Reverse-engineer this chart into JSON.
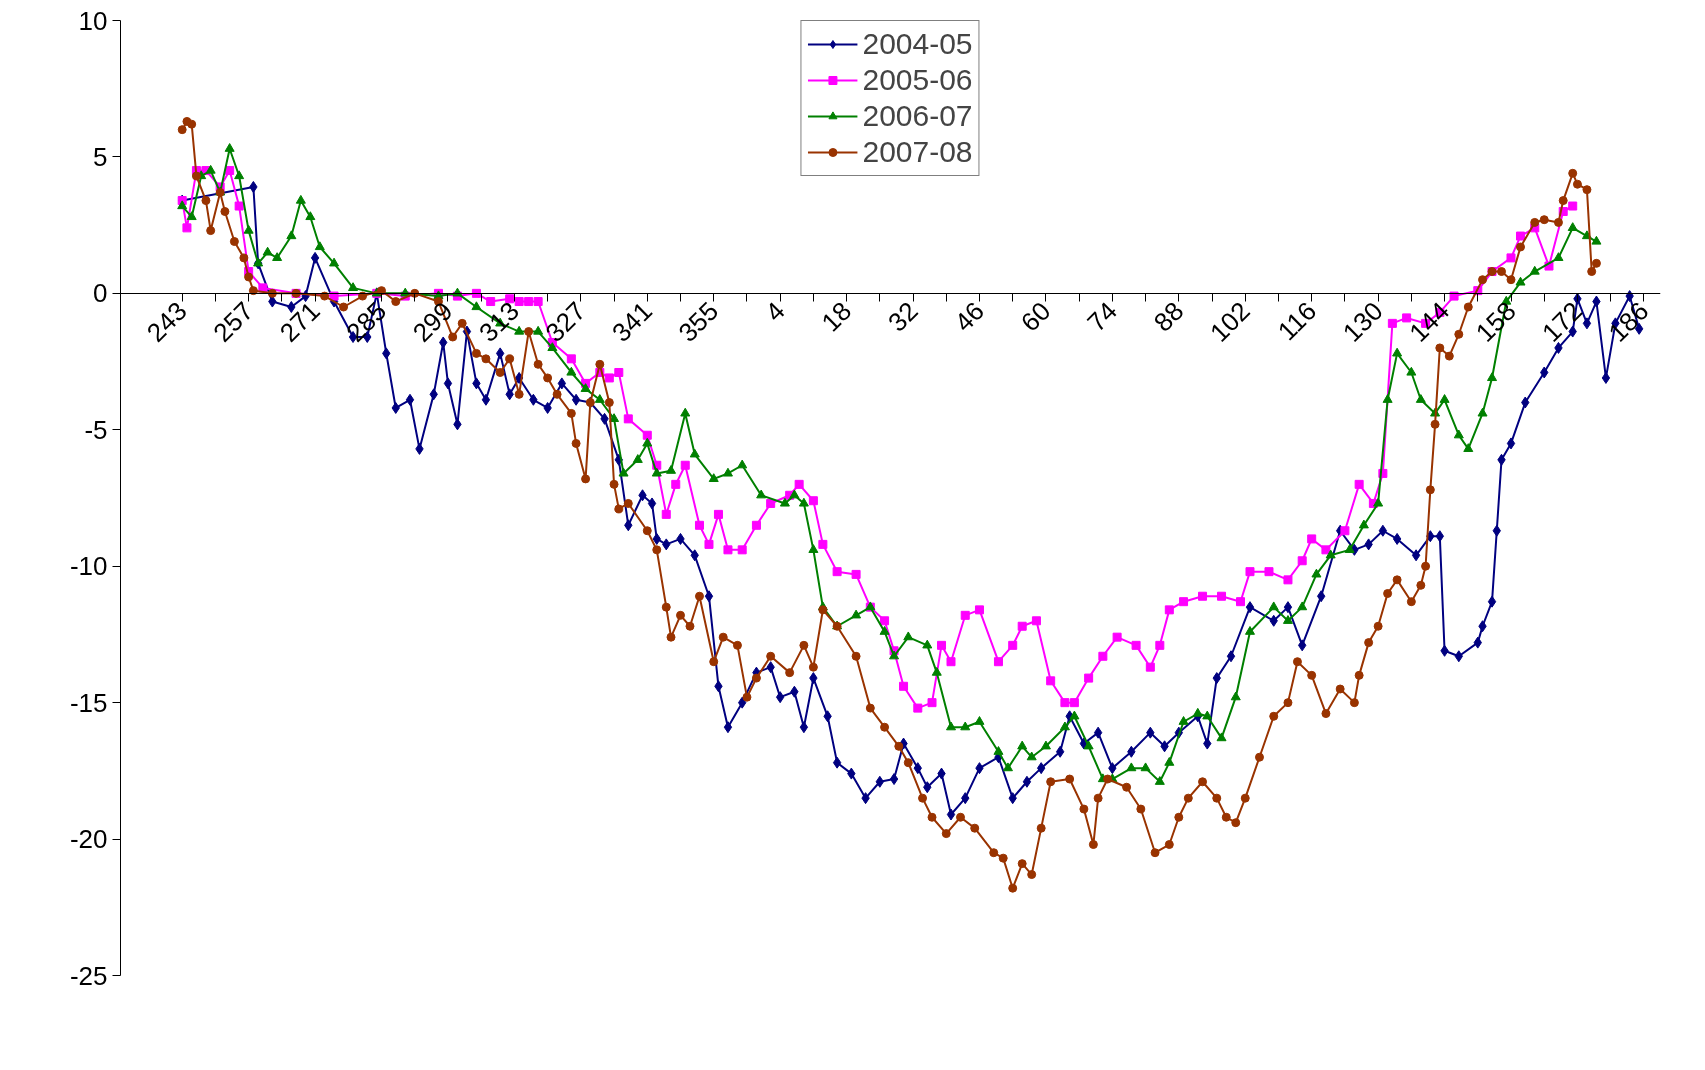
{
  "chart_data": {
    "type": "line",
    "ylim": [
      -25,
      10
    ],
    "categories": [
      "243",
      null,
      null,
      null,
      null,
      null,
      null,
      null,
      null,
      null,
      null,
      null,
      null,
      null,
      "257",
      null,
      null,
      null,
      null,
      null,
      null,
      null,
      null,
      null,
      null,
      null,
      null,
      null,
      "271",
      null,
      null,
      null,
      null,
      null,
      null,
      null,
      null,
      null,
      null,
      null,
      null,
      null,
      "285",
      null,
      null,
      null,
      null,
      null,
      null,
      null,
      null,
      null,
      null,
      null,
      null,
      null,
      "299",
      null,
      null,
      null,
      null,
      null,
      null,
      null,
      null,
      null,
      null,
      null,
      null,
      null,
      "313",
      null,
      null,
      null,
      null,
      null,
      null,
      null,
      null,
      null,
      null,
      null,
      null,
      null,
      "327",
      null,
      null,
      null,
      null,
      null,
      null,
      null,
      null,
      null,
      null,
      null,
      null,
      null,
      "341",
      null,
      null,
      null,
      null,
      null,
      null,
      null,
      null,
      null,
      null,
      null,
      null,
      null,
      "355",
      null,
      null,
      null,
      null,
      null,
      null,
      null,
      null,
      null,
      null,
      null,
      null,
      null,
      "4",
      null,
      null,
      null,
      null,
      null,
      null,
      null,
      null,
      null,
      null,
      null,
      null,
      null,
      "18",
      null,
      null,
      null,
      null,
      null,
      null,
      null,
      null,
      null,
      null,
      null,
      null,
      null,
      "32",
      null,
      null,
      null,
      null,
      null,
      null,
      null,
      null,
      null,
      null,
      null,
      null,
      null,
      "46",
      null,
      null,
      null,
      null,
      null,
      null,
      null,
      null,
      null,
      null,
      null,
      null,
      null,
      "60",
      null,
      null,
      null,
      null,
      null,
      null,
      null,
      null,
      null,
      null,
      null,
      null,
      null,
      "74",
      null,
      null,
      null,
      null,
      null,
      null,
      null,
      null,
      null,
      null,
      null,
      null,
      null,
      "88",
      null,
      null,
      null,
      null,
      null,
      null,
      null,
      null,
      null,
      null,
      null,
      null,
      null,
      "102",
      null,
      null,
      null,
      null,
      null,
      null,
      null,
      null,
      null,
      null,
      null,
      null,
      null,
      "116",
      null,
      null,
      null,
      null,
      null,
      null,
      null,
      null,
      null,
      null,
      null,
      null,
      null,
      "130",
      null,
      null,
      null,
      null,
      null,
      null,
      null,
      null,
      null,
      null,
      null,
      null,
      null,
      "144",
      null,
      null,
      null,
      null,
      null,
      null,
      null,
      null,
      null,
      null,
      null,
      null,
      null,
      "158",
      null,
      null,
      null,
      null,
      null,
      null,
      null,
      null,
      null,
      null,
      null,
      null,
      null,
      "172",
      null,
      null,
      null,
      null,
      null,
      null,
      null,
      null,
      null,
      null,
      null,
      null,
      null,
      "186",
      null,
      null,
      null
    ],
    "yticks": [
      -25,
      -20,
      -15,
      -10,
      -5,
      0,
      5,
      10
    ],
    "grid": false,
    "legend": "top",
    "line_style": "solid",
    "series": [
      {
        "name": "2004-05",
        "color": "#000080",
        "marker": "diamond",
        "values": [
          3.4,
          null,
          null,
          null,
          null,
          null,
          null,
          null,
          null,
          null,
          null,
          null,
          null,
          null,
          null,
          3.9,
          1.1,
          null,
          null,
          -0.3,
          null,
          null,
          null,
          -0.5,
          null,
          null,
          -0.1,
          null,
          1.3,
          null,
          null,
          null,
          -0.3,
          null,
          null,
          null,
          -1.6,
          null,
          null,
          -1.6,
          null,
          0.0,
          null,
          -2.2,
          null,
          -4.2,
          null,
          null,
          -3.9,
          null,
          -5.7,
          null,
          null,
          -3.7,
          null,
          -1.8,
          -3.3,
          null,
          -4.8,
          null,
          -1.4,
          null,
          -3.3,
          null,
          -3.9,
          null,
          null,
          -2.2,
          null,
          -3.7,
          null,
          -3.1,
          null,
          null,
          -3.9,
          null,
          null,
          -4.2,
          null,
          null,
          -3.3,
          null,
          null,
          -3.9,
          null,
          null,
          -4.0,
          null,
          null,
          -4.6,
          null,
          null,
          -6.1,
          null,
          -8.5,
          null,
          null,
          -7.4,
          null,
          -7.7,
          -9.0,
          null,
          -9.2,
          null,
          null,
          -9.0,
          null,
          null,
          -9.6,
          null,
          null,
          -11.1,
          null,
          -14.4,
          null,
          -15.9,
          null,
          null,
          -15.0,
          null,
          null,
          -13.9,
          null,
          null,
          -13.7,
          null,
          -14.8,
          null,
          null,
          -14.6,
          null,
          -15.9,
          null,
          -14.1,
          null,
          null,
          -15.5,
          null,
          -17.2,
          null,
          null,
          -17.6,
          null,
          null,
          -18.5,
          null,
          null,
          -17.9,
          null,
          null,
          -17.8,
          null,
          -16.5,
          null,
          null,
          -17.4,
          null,
          -18.1,
          null,
          null,
          -17.6,
          null,
          -19.1,
          null,
          null,
          -18.5,
          null,
          null,
          -17.4,
          null,
          null,
          null,
          -17.0,
          null,
          null,
          -18.5,
          null,
          null,
          -17.9,
          null,
          null,
          -17.4,
          null,
          null,
          null,
          -16.8,
          null,
          -15.5,
          null,
          null,
          -16.5,
          null,
          null,
          -16.1,
          null,
          null,
          -17.4,
          null,
          null,
          null,
          -16.8,
          null,
          null,
          null,
          -16.1,
          null,
          null,
          -16.6,
          null,
          null,
          -16.1,
          null,
          null,
          null,
          -15.5,
          null,
          -16.5,
          null,
          -14.1,
          null,
          null,
          -13.3,
          null,
          null,
          null,
          -11.5,
          null,
          null,
          null,
          null,
          -12.0,
          null,
          null,
          -11.5,
          null,
          null,
          -12.9,
          null,
          null,
          null,
          -11.1,
          null,
          null,
          null,
          -8.7,
          null,
          null,
          -9.4,
          null,
          null,
          -9.2,
          null,
          null,
          -8.7,
          null,
          null,
          -9.0,
          null,
          null,
          null,
          -9.6,
          null,
          null,
          -8.9,
          null,
          -8.9,
          -13.1,
          null,
          null,
          -13.3,
          null,
          null,
          null,
          -12.8,
          -12.2,
          null,
          -11.3,
          -8.7,
          -6.1,
          null,
          -5.5,
          null,
          null,
          -4.0,
          null,
          null,
          null,
          -2.9,
          null,
          null,
          -2.0,
          null,
          null,
          -1.4,
          -0.2,
          null,
          -1.1,
          null,
          -0.3,
          null,
          -3.1,
          null,
          -1.1,
          null,
          null,
          -0.1,
          null,
          -1.3,
          null,
          null,
          null,
          null
        ]
      },
      {
        "name": "2005-06",
        "color": "#ff00ff",
        "marker": "square",
        "values": [
          3.4,
          2.4,
          null,
          4.5,
          null,
          4.5,
          null,
          null,
          3.9,
          null,
          4.5,
          null,
          3.2,
          null,
          0.8,
          null,
          null,
          0.2,
          null,
          null,
          null,
          null,
          null,
          null,
          0.0,
          null,
          null,
          null,
          null,
          null,
          null,
          null,
          -0.1,
          null,
          null,
          null,
          null,
          null,
          null,
          null,
          null,
          0.0,
          null,
          null,
          null,
          null,
          null,
          -0.1,
          null,
          null,
          null,
          null,
          null,
          null,
          0.0,
          null,
          null,
          null,
          -0.1,
          null,
          null,
          null,
          0.0,
          null,
          null,
          -0.3,
          null,
          null,
          null,
          -0.2,
          null,
          -0.3,
          null,
          -0.3,
          null,
          -0.3,
          null,
          null,
          -1.8,
          null,
          null,
          null,
          -2.4,
          null,
          null,
          -3.3,
          null,
          null,
          -2.9,
          null,
          -3.1,
          null,
          -2.9,
          null,
          -4.6,
          null,
          null,
          null,
          -5.2,
          null,
          -6.3,
          null,
          -8.1,
          null,
          -7.0,
          null,
          -6.3,
          null,
          null,
          -8.5,
          null,
          -9.2,
          null,
          -8.1,
          null,
          -9.4,
          null,
          null,
          -9.4,
          null,
          null,
          -8.5,
          null,
          null,
          -7.7,
          null,
          null,
          null,
          -7.4,
          null,
          -7.0,
          null,
          null,
          -7.6,
          null,
          -9.2,
          null,
          null,
          -10.2,
          null,
          null,
          null,
          -10.3,
          null,
          null,
          -11.5,
          null,
          null,
          -12.0,
          null,
          -13.1,
          null,
          -14.4,
          null,
          null,
          -15.2,
          null,
          null,
          -15.0,
          null,
          -12.9,
          null,
          -13.5,
          null,
          null,
          -11.8,
          null,
          null,
          -11.6,
          null,
          null,
          null,
          -13.5,
          null,
          null,
          -12.9,
          null,
          -12.2,
          null,
          null,
          -12.0,
          null,
          null,
          -14.2,
          null,
          null,
          -15.0,
          null,
          -15.0,
          null,
          null,
          -14.1,
          null,
          null,
          -13.3,
          null,
          null,
          -12.6,
          null,
          null,
          null,
          -12.9,
          null,
          null,
          -13.7,
          null,
          -12.9,
          null,
          -11.6,
          null,
          null,
          -11.3,
          null,
          null,
          null,
          -11.1,
          null,
          null,
          null,
          -11.1,
          null,
          null,
          null,
          -11.3,
          null,
          -10.2,
          null,
          null,
          null,
          -10.2,
          null,
          null,
          null,
          -10.5,
          null,
          null,
          -9.8,
          null,
          -9.0,
          null,
          null,
          -9.4,
          null,
          null,
          null,
          -8.7,
          null,
          null,
          -7.0,
          null,
          null,
          -7.7,
          null,
          -6.6,
          null,
          -1.1,
          null,
          null,
          -0.9,
          null,
          null,
          null,
          -1.1,
          null,
          null,
          -0.7,
          null,
          null,
          -0.1,
          null,
          null,
          null,
          null,
          0.1,
          null,
          null,
          0.8,
          null,
          null,
          null,
          1.3,
          null,
          2.1,
          null,
          null,
          2.4,
          null,
          null,
          1.0,
          null,
          null,
          3.0,
          null,
          3.2,
          null,
          null,
          null,
          null,
          null,
          null,
          null,
          null,
          null,
          null,
          null,
          null,
          null,
          null,
          null,
          null,
          null,
          null
        ]
      },
      {
        "name": "2006-07",
        "color": "#008000",
        "marker": "triangle",
        "values": [
          3.2,
          null,
          2.8,
          null,
          4.3,
          null,
          4.5,
          null,
          3.7,
          null,
          5.3,
          null,
          4.3,
          null,
          2.3,
          null,
          1.1,
          null,
          1.5,
          null,
          1.3,
          null,
          null,
          2.1,
          null,
          3.4,
          null,
          2.8,
          null,
          1.7,
          null,
          null,
          1.1,
          null,
          null,
          null,
          0.2,
          null,
          null,
          null,
          null,
          0.0,
          null,
          null,
          null,
          null,
          null,
          0.0,
          null,
          null,
          null,
          null,
          null,
          null,
          -0.1,
          null,
          null,
          null,
          0.0,
          null,
          null,
          null,
          -0.5,
          null,
          null,
          null,
          null,
          -1.1,
          null,
          null,
          null,
          -1.4,
          null,
          null,
          null,
          -1.4,
          null,
          null,
          -2.0,
          null,
          null,
          null,
          -2.9,
          null,
          null,
          -3.5,
          null,
          null,
          -3.9,
          null,
          null,
          -4.6,
          null,
          -6.6,
          null,
          null,
          -6.1,
          null,
          -5.5,
          null,
          -6.6,
          null,
          null,
          -6.5,
          null,
          null,
          -4.4,
          null,
          -5.9,
          null,
          null,
          null,
          -6.8,
          null,
          null,
          -6.6,
          null,
          null,
          -6.3,
          null,
          null,
          null,
          -7.4,
          null,
          null,
          null,
          null,
          -7.7,
          null,
          -7.4,
          null,
          -7.7,
          null,
          -9.4,
          null,
          -11.5,
          null,
          null,
          -12.2,
          null,
          null,
          null,
          -11.8,
          null,
          null,
          -11.5,
          null,
          null,
          -12.4,
          null,
          -13.3,
          null,
          null,
          -12.6,
          null,
          null,
          null,
          -12.9,
          null,
          -13.9,
          null,
          null,
          -15.9,
          null,
          null,
          -15.9,
          null,
          null,
          -15.7,
          null,
          null,
          null,
          -16.8,
          null,
          -17.4,
          null,
          null,
          -16.6,
          null,
          -17.0,
          null,
          null,
          -16.6,
          null,
          null,
          null,
          -15.9,
          null,
          -15.5,
          null,
          null,
          -16.6,
          null,
          null,
          -17.8,
          null,
          -17.8,
          null,
          null,
          null,
          -17.4,
          null,
          null,
          -17.4,
          null,
          null,
          -17.9,
          null,
          -17.2,
          null,
          null,
          -15.7,
          null,
          null,
          -15.4,
          null,
          -15.5,
          null,
          null,
          -16.3,
          null,
          null,
          -14.8,
          null,
          null,
          -12.4,
          null,
          null,
          null,
          null,
          -11.5,
          null,
          null,
          -12.0,
          null,
          null,
          -11.5,
          null,
          null,
          -10.3,
          null,
          null,
          -9.6,
          null,
          null,
          null,
          -9.4,
          null,
          null,
          -8.5,
          null,
          null,
          -7.7,
          null,
          -3.9,
          null,
          -2.2,
          null,
          null,
          -2.9,
          null,
          -3.9,
          null,
          null,
          -4.4,
          null,
          -3.9,
          null,
          null,
          -5.2,
          null,
          -5.7,
          null,
          null,
          -4.4,
          null,
          -3.1,
          null,
          null,
          -0.3,
          null,
          null,
          0.4,
          null,
          null,
          0.8,
          null,
          null,
          null,
          null,
          1.3,
          null,
          null,
          2.4,
          null,
          null,
          2.1,
          null,
          1.9,
          null,
          null,
          null,
          null,
          null,
          null,
          null,
          null,
          null,
          null,
          null,
          null,
          null
        ]
      },
      {
        "name": "2007-08",
        "color": "#993300",
        "marker": "circle",
        "values": [
          6.0,
          6.3,
          6.2,
          4.3,
          null,
          3.4,
          2.3,
          null,
          3.7,
          3.0,
          null,
          1.9,
          null,
          1.3,
          0.6,
          0.1,
          null,
          null,
          null,
          0.0,
          null,
          null,
          null,
          null,
          0.0,
          null,
          null,
          null,
          null,
          null,
          -0.1,
          null,
          null,
          null,
          -0.5,
          null,
          null,
          null,
          -0.1,
          null,
          null,
          null,
          0.1,
          null,
          null,
          -0.3,
          null,
          null,
          null,
          0.0,
          null,
          null,
          null,
          null,
          -0.3,
          null,
          null,
          -1.6,
          null,
          -1.1,
          null,
          null,
          -2.2,
          null,
          -2.4,
          null,
          null,
          -2.9,
          null,
          -2.4,
          null,
          -3.7,
          null,
          -1.4,
          null,
          -2.6,
          null,
          -3.1,
          null,
          -3.7,
          null,
          null,
          -4.4,
          -5.5,
          null,
          -6.8,
          -4.0,
          null,
          -2.6,
          null,
          -4.0,
          -7.0,
          -7.9,
          null,
          -7.7,
          null,
          null,
          null,
          -8.7,
          null,
          -9.4,
          null,
          -11.5,
          -12.6,
          null,
          -11.8,
          null,
          -12.2,
          null,
          -11.1,
          null,
          null,
          -13.5,
          null,
          -12.6,
          null,
          null,
          -12.9,
          null,
          -14.8,
          null,
          -14.1,
          null,
          null,
          -13.3,
          null,
          null,
          null,
          -13.9,
          null,
          null,
          -12.9,
          null,
          -13.7,
          null,
          -11.6,
          null,
          null,
          -12.2,
          null,
          null,
          null,
          -13.3,
          null,
          null,
          -15.2,
          null,
          null,
          -15.9,
          null,
          null,
          -16.6,
          null,
          -17.2,
          null,
          null,
          -18.5,
          null,
          -19.2,
          null,
          null,
          -19.8,
          null,
          null,
          -19.2,
          null,
          null,
          -19.6,
          null,
          null,
          null,
          -20.5,
          null,
          -20.7,
          null,
          -21.8,
          null,
          -20.9,
          null,
          -21.3,
          null,
          -19.6,
          null,
          -17.9,
          null,
          null,
          null,
          -17.8,
          null,
          null,
          -18.9,
          null,
          -20.2,
          -18.5,
          null,
          -17.8,
          null,
          null,
          null,
          -18.1,
          null,
          null,
          -18.9,
          null,
          null,
          -20.5,
          null,
          null,
          -20.2,
          null,
          -19.2,
          null,
          -18.5,
          null,
          null,
          -17.9,
          null,
          null,
          -18.5,
          null,
          -19.2,
          null,
          -19.4,
          null,
          -18.5,
          null,
          null,
          -17.0,
          null,
          null,
          -15.5,
          null,
          null,
          -15.0,
          null,
          -13.5,
          null,
          null,
          -14.0,
          null,
          null,
          -15.4,
          null,
          null,
          -14.5,
          null,
          null,
          -15.0,
          -14.0,
          null,
          -12.8,
          null,
          -12.2,
          null,
          -11.0,
          null,
          -10.5,
          null,
          null,
          -11.3,
          null,
          -10.7,
          -10.0,
          -7.2,
          -4.8,
          -2.0,
          null,
          -2.3,
          null,
          -1.5,
          null,
          -0.5,
          null,
          null,
          0.5,
          null,
          0.8,
          null,
          0.8,
          null,
          0.5,
          null,
          1.7,
          null,
          null,
          2.6,
          null,
          2.7,
          null,
          null,
          2.6,
          3.4,
          null,
          4.4,
          4.0,
          null,
          3.8,
          0.8,
          1.1,
          null,
          null,
          null,
          null,
          null,
          null,
          null,
          null,
          null,
          null,
          null,
          null,
          null
        ]
      }
    ]
  }
}
